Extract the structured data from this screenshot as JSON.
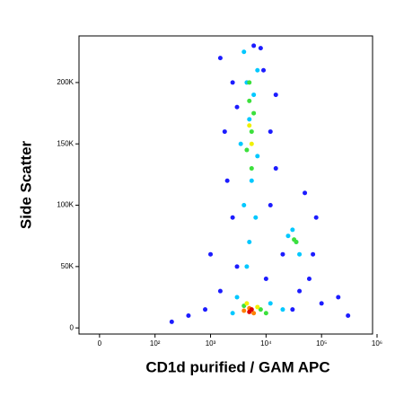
{
  "chart_data": {
    "type": "scatter",
    "xlabel": "CD1d purified / GAM APC",
    "ylabel": "Side Scatter",
    "xscale": "biexponential",
    "xlim": [
      -37,
      830000
    ],
    "xticks": [
      0,
      {
        "value": 100,
        "label": "10²"
      },
      {
        "value": 1000,
        "label": "10³"
      },
      {
        "value": 10000,
        "label": "10⁴"
      },
      {
        "value": 100000,
        "label": "10⁵"
      },
      {
        "value": 1000000,
        "label": "10⁶"
      }
    ],
    "ylim": [
      -5000,
      238000
    ],
    "yticks": [
      0,
      {
        "value": 50000,
        "label": "50K"
      },
      {
        "value": 100000,
        "label": "100K"
      },
      {
        "value": 150000,
        "label": "150K"
      },
      {
        "value": 200000,
        "label": "200K"
      }
    ],
    "series": [
      {
        "color": "#1c1cff",
        "x": [
          1500,
          2500,
          3000,
          9000,
          12000,
          2000,
          15000,
          2500,
          12000,
          20000,
          60000,
          80000,
          100000,
          1500,
          800,
          400,
          30000,
          50000,
          200000,
          3000,
          10000,
          40000,
          1000,
          300000,
          200,
          6000,
          8000,
          1800,
          15000,
          70000
        ],
        "values": [
          220000,
          200000,
          180000,
          210000,
          160000,
          120000,
          130000,
          90000,
          100000,
          60000,
          40000,
          90000,
          20000,
          30000,
          15000,
          10000,
          15000,
          110000,
          25000,
          50000,
          40000,
          30000,
          60000,
          10000,
          5000,
          230000,
          228000,
          160000,
          190000,
          60000
        ]
      },
      {
        "color": "#00c8ff",
        "x": [
          4500,
          6000,
          5000,
          3500,
          7000,
          5500,
          4000,
          6500,
          5000,
          4500,
          7000,
          4000,
          30000,
          40000,
          35000,
          3000,
          12000,
          20000,
          2500,
          25000
        ],
        "values": [
          200000,
          190000,
          170000,
          150000,
          140000,
          120000,
          100000,
          90000,
          70000,
          50000,
          210000,
          225000,
          80000,
          60000,
          70000,
          25000,
          20000,
          15000,
          12000,
          75000
        ]
      },
      {
        "color": "#3ce03c",
        "x": [
          5000,
          5500,
          4500,
          6000,
          5000,
          5500,
          35000,
          32000,
          4000,
          8000,
          10000
        ],
        "values": [
          185000,
          160000,
          145000,
          175000,
          200000,
          130000,
          70000,
          72000,
          18000,
          15000,
          12000
        ]
      },
      {
        "color": "#f0f000",
        "x": [
          5000,
          5500,
          4500,
          7000
        ],
        "values": [
          165000,
          150000,
          20000,
          17000
        ]
      },
      {
        "color": "#ff8000",
        "x": [
          5000,
          6000,
          4000
        ],
        "values": [
          16000,
          12000,
          14000
        ]
      },
      {
        "color": "#e00000",
        "x": [
          5000,
          5500
        ],
        "values": [
          13000,
          15000
        ]
      }
    ]
  }
}
